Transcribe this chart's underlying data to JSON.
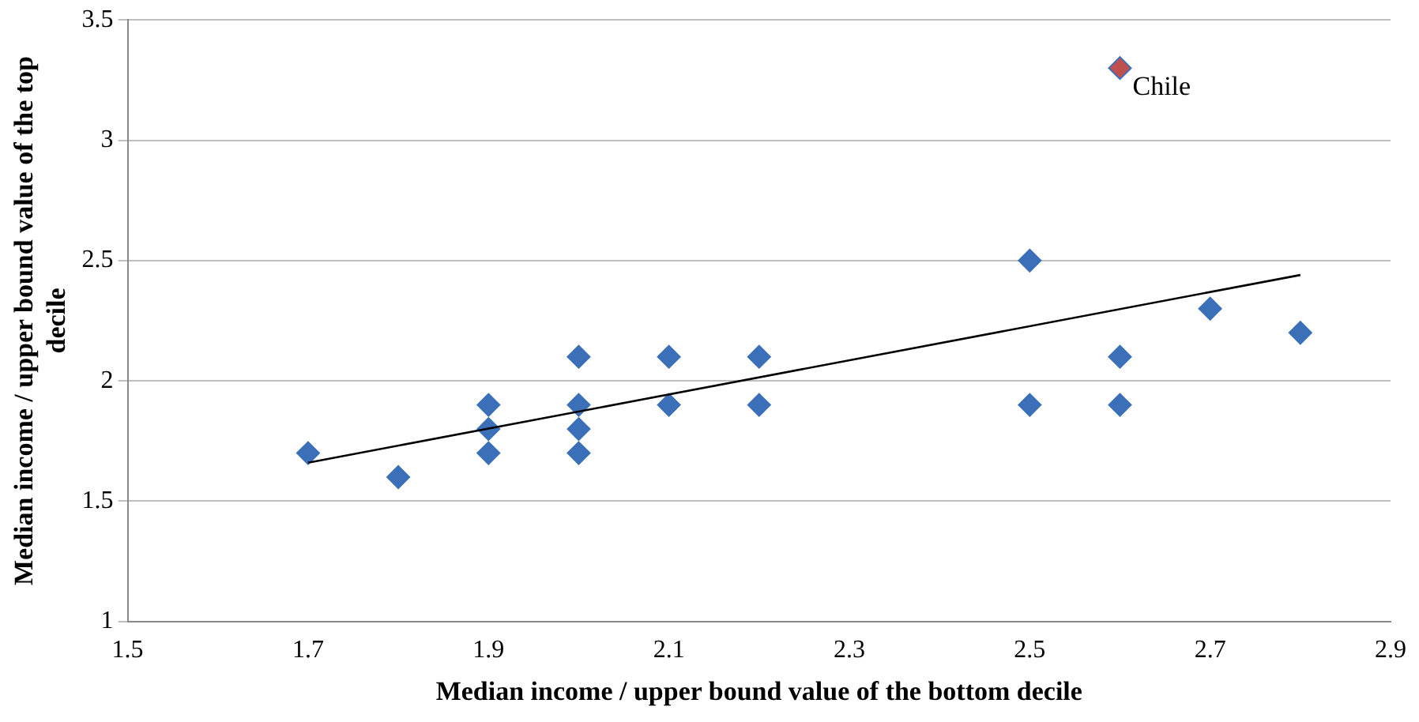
{
  "chart_data": {
    "type": "scatter",
    "xlabel": "Median income / upper bound value of the bottom decile",
    "ylabel": "Median income / upper bound value of the top decile",
    "series": [
      {
        "color": "#3b70b9",
        "x": [
          1.7,
          1.8,
          1.9,
          1.9,
          1.9,
          2.0,
          2.0,
          2.0,
          2.0,
          2.1,
          2.1,
          2.2,
          2.2,
          2.5,
          2.5,
          2.6,
          2.6,
          2.7,
          2.8,
          2.6
        ],
        "values": [
          1.7,
          1.6,
          1.9,
          1.8,
          1.7,
          2.1,
          1.9,
          1.8,
          1.7,
          2.1,
          1.9,
          2.1,
          1.9,
          2.5,
          1.9,
          2.1,
          1.9,
          2.3,
          2.2,
          3.3
        ],
        "colors": [
          "#3b70b9",
          "#3b70b9",
          "#3b70b9",
          "#3b70b9",
          "#3b70b9",
          "#3b70b9",
          "#3b70b9",
          "#3b70b9",
          "#3b70b9",
          "#3b70b9",
          "#3b70b9",
          "#3b70b9",
          "#3b70b9",
          "#3b70b9",
          "#3b70b9",
          "#3b70b9",
          "#3b70b9",
          "#3b70b9",
          "#3b70b9",
          "#c0504d"
        ]
      },
      {
        "type": "line",
        "color": "#000000",
        "marker": "none",
        "x": [
          1.7,
          2.8
        ],
        "values": [
          1.66,
          2.44
        ]
      }
    ],
    "annotations": [
      {
        "text": "Chile",
        "x": 2.6,
        "y": 3.3
      }
    ],
    "xlim": [
      1.5,
      2.9
    ],
    "xticks": [
      1.5,
      1.7,
      1.9,
      2.1,
      2.3,
      2.5,
      2.7,
      2.9
    ],
    "ylim": [
      1,
      3.5
    ],
    "yticks": [
      1,
      1.5,
      2,
      2.5,
      3,
      3.5
    ],
    "grid": "y",
    "marker": "diamond",
    "legend": false
  }
}
